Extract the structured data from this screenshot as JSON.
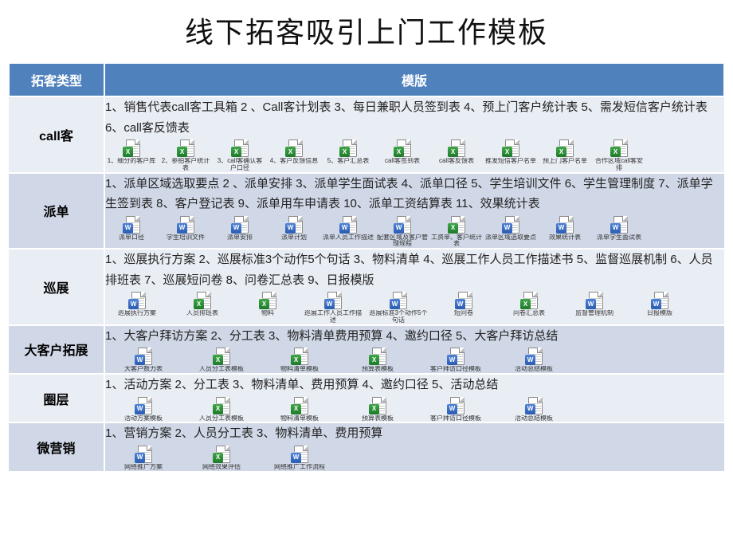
{
  "title": "线下拓客吸引上门工作模板",
  "colors": {
    "header_bg": "#4f81bd",
    "header_fg": "#ffffff",
    "row_odd": "#e9edf4",
    "row_even": "#d0d8e7",
    "border": "#ffffff"
  },
  "columns": {
    "type": "拓客类型",
    "template": "模版"
  },
  "rows": [
    {
      "type": "call客",
      "desc": "1、销售代表call客工具箱  2 、Call客计划表  3、每日兼职人员签到表  4、预上门客户统计表  5、需发短信客户统计表  6、call客反馈表",
      "files": [
        {
          "kind": "excel",
          "label": "1、细分的客户库"
        },
        {
          "kind": "excel",
          "label": "2、参拍客户统计表"
        },
        {
          "kind": "excel",
          "label": "3、call客确认客户口径"
        },
        {
          "kind": "excel",
          "label": "4、客户反馈信息"
        },
        {
          "kind": "excel",
          "label": "5、客户汇总表"
        },
        {
          "kind": "excel",
          "label": "call客签到表"
        },
        {
          "kind": "excel",
          "label": "call客反馈表"
        },
        {
          "kind": "excel",
          "label": "推发短信客户名单"
        },
        {
          "kind": "excel",
          "label": "预上门客户名单"
        },
        {
          "kind": "excel",
          "label": "合作区域call客安排"
        }
      ]
    },
    {
      "type": "派单",
      "desc": "1、派单区域选取要点  2 、派单安排  3、派单学生面试表  4、派单口径  5、学生培训文件  6、学生管理制度  7、派单学生签到表  8、客户登记表  9、派单用车申请表  10、派单工资结算表  11、效果统计表",
      "files": [
        {
          "kind": "word",
          "label": "派单口径"
        },
        {
          "kind": "word",
          "label": "学生培训文件"
        },
        {
          "kind": "word",
          "label": "派单安排"
        },
        {
          "kind": "word",
          "label": "派单计划"
        },
        {
          "kind": "word",
          "label": "派单人员工作描述"
        },
        {
          "kind": "word",
          "label": "配套区域及客户管理规程"
        },
        {
          "kind": "excel",
          "label": "工资单、客户统计表"
        },
        {
          "kind": "word",
          "label": "派单区域选取要点"
        },
        {
          "kind": "word",
          "label": "效果统计表"
        },
        {
          "kind": "word",
          "label": "派单学生面试表"
        }
      ]
    },
    {
      "type": "巡展",
      "desc": "1、巡展执行方案  2、巡展标准3个动作5个句话  3、物料清单  4、巡展工作人员工作描述书  5、监督巡展机制  6、人员排班表  7、巡展短问卷  8、问卷汇总表    9、日报模版",
      "files": [
        {
          "kind": "word",
          "label": "巡展执行方案"
        },
        {
          "kind": "excel",
          "label": "人员排班表"
        },
        {
          "kind": "excel",
          "label": "物料"
        },
        {
          "kind": "word",
          "label": "巡展工作人员工作描述"
        },
        {
          "kind": "word",
          "label": "巡展标准3个动作5个句话"
        },
        {
          "kind": "word",
          "label": "短问卷"
        },
        {
          "kind": "excel",
          "label": "问卷汇总表"
        },
        {
          "kind": "word",
          "label": "监督管理机制"
        },
        {
          "kind": "word",
          "label": "日报模版"
        }
      ]
    },
    {
      "type": "大客户拓展",
      "desc": "1、大客户拜访方案   2、分工表  3、物料清单费用预算  4、邀约口径  5、大客户拜访总结",
      "files": [
        {
          "kind": "word",
          "label": "大客户数力表"
        },
        {
          "kind": "excel",
          "label": "人员分工表模板"
        },
        {
          "kind": "excel",
          "label": "物料清单模板"
        },
        {
          "kind": "excel",
          "label": "预算表模板"
        },
        {
          "kind": "word",
          "label": "客户拜访口径模板"
        },
        {
          "kind": "word",
          "label": "活动总结模板"
        }
      ]
    },
    {
      "type": "圈层",
      "desc": "1、活动方案  2、分工表  3、物料清单、费用预算  4、邀约口径  5、活动总结",
      "files": [
        {
          "kind": "word",
          "label": "活动方案模板"
        },
        {
          "kind": "excel",
          "label": "人员分工表模板"
        },
        {
          "kind": "excel",
          "label": "物料清单模板"
        },
        {
          "kind": "excel",
          "label": "预算表模板"
        },
        {
          "kind": "word",
          "label": "客户拜访口径模板"
        },
        {
          "kind": "word",
          "label": "活动总结模板"
        }
      ]
    },
    {
      "type": "微营销",
      "desc": "1、营销方案   2、人员分工表  3、物料清单、费用预算",
      "files": [
        {
          "kind": "word",
          "label": "网络推广方案"
        },
        {
          "kind": "excel",
          "label": "网络效果评估"
        },
        {
          "kind": "word",
          "label": "网络推广工作流程"
        }
      ]
    }
  ]
}
